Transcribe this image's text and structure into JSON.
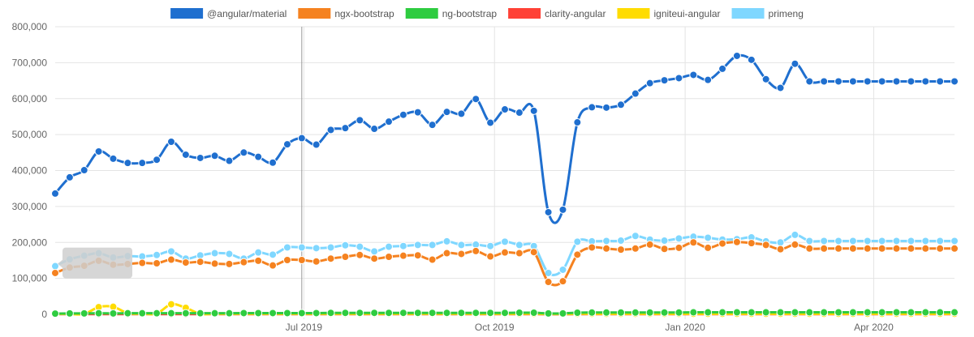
{
  "chart_data": {
    "type": "line",
    "x": [
      "2019-03-03",
      "2019-03-10",
      "2019-03-17",
      "2019-03-24",
      "2019-03-31",
      "2019-04-07",
      "2019-04-14",
      "2019-04-21",
      "2019-04-28",
      "2019-05-05",
      "2019-05-12",
      "2019-05-19",
      "2019-05-26",
      "2019-06-02",
      "2019-06-09",
      "2019-06-16",
      "2019-06-23",
      "2019-06-30",
      "2019-07-07",
      "2019-07-14",
      "2019-07-21",
      "2019-07-28",
      "2019-08-04",
      "2019-08-11",
      "2019-08-18",
      "2019-08-25",
      "2019-09-01",
      "2019-09-08",
      "2019-09-15",
      "2019-09-22",
      "2019-09-29",
      "2019-10-06",
      "2019-10-13",
      "2019-10-20",
      "2019-10-27",
      "2019-11-03",
      "2019-11-10",
      "2019-11-17",
      "2019-11-24",
      "2019-12-01",
      "2019-12-08",
      "2019-12-15",
      "2019-12-22",
      "2019-12-29",
      "2020-01-05",
      "2020-01-12",
      "2020-01-19",
      "2020-01-26",
      "2020-02-02",
      "2020-02-09",
      "2020-02-16",
      "2020-02-23",
      "2020-03-01",
      "2020-03-08",
      "2020-03-15",
      "2020-03-22",
      "2020-03-29",
      "2020-04-05",
      "2020-04-12",
      "2020-04-19",
      "2020-04-26",
      "2020-05-03",
      "2020-05-10"
    ],
    "x_tick_labels": [
      {
        "date": "2019-07-01",
        "label": "Jul 2019"
      },
      {
        "date": "2019-10-01",
        "label": "Oct 2019"
      },
      {
        "date": "2020-01-01",
        "label": "Jan 2020"
      },
      {
        "date": "2020-04-01",
        "label": "Apr 2020"
      }
    ],
    "y_ticks": [
      0,
      100000,
      200000,
      300000,
      400000,
      500000,
      600000,
      700000,
      800000
    ],
    "y_tick_labels": [
      "0",
      "100,000",
      "200,000",
      "300,000",
      "400,000",
      "500,000",
      "600,000",
      "700,000",
      "800,000"
    ],
    "ylim": [
      0,
      800000
    ],
    "grid": true,
    "legend_position": "top-center",
    "crosshair_date": "2019-06-30",
    "series": [
      {
        "name": "@angular/material",
        "color": "#1f6fcf",
        "values": [
          336000,
          381000,
          401000,
          453000,
          433000,
          421000,
          421000,
          430000,
          480000,
          444000,
          435000,
          441000,
          427000,
          450000,
          438000,
          422000,
          473000,
          490000,
          472000,
          513000,
          518000,
          540000,
          516000,
          536000,
          555000,
          562000,
          527000,
          563000,
          558000,
          599000,
          533000,
          570000,
          561000,
          566000,
          284000,
          291000,
          534000,
          576000,
          575000,
          583000,
          614000,
          643000,
          651000,
          657000,
          666000,
          652000,
          683000,
          719000,
          708000,
          654000,
          630000,
          697000,
          648000,
          648000,
          648000,
          648000,
          648000,
          648000,
          648000,
          648000,
          648000,
          648000,
          648000
        ]
      },
      {
        "name": "ngx-bootstrap",
        "color": "#f58220",
        "values": [
          115000,
          130000,
          135000,
          149000,
          138000,
          140000,
          143000,
          142000,
          152000,
          144000,
          146000,
          141000,
          140000,
          145000,
          149000,
          136000,
          151000,
          151000,
          147000,
          155000,
          160000,
          165000,
          155000,
          160000,
          163000,
          164000,
          152000,
          170000,
          168000,
          176000,
          161000,
          172000,
          170000,
          173000,
          90000,
          92000,
          166000,
          186000,
          183000,
          180000,
          183000,
          194000,
          182000,
          185000,
          200000,
          185000,
          197000,
          201000,
          198000,
          193000,
          181000,
          194000,
          183000,
          183000,
          183000,
          183000,
          183000,
          183000,
          183000,
          183000,
          183000,
          183000,
          183000
        ]
      },
      {
        "name": "ng-bootstrap",
        "color": "#2ecc40",
        "values": [
          2000,
          2500,
          2500,
          3000,
          2500,
          3000,
          3000,
          3000,
          3000,
          3000,
          3000,
          3000,
          3000,
          3500,
          3500,
          3500,
          3500,
          3500,
          3500,
          4000,
          4000,
          4000,
          4000,
          4000,
          4000,
          4000,
          4000,
          4000,
          4000,
          4000,
          4000,
          4000,
          4500,
          4500,
          2500,
          2500,
          4500,
          5000,
          5000,
          5000,
          5000,
          5000,
          5000,
          5000,
          5500,
          5500,
          5500,
          5500,
          5500,
          5500,
          5500,
          5500,
          5500,
          5500,
          5500,
          5500,
          5500,
          5500,
          5500,
          5500,
          5500,
          5500,
          5500
        ]
      },
      {
        "name": "clarity-angular",
        "color": "#ff4136",
        "values": [
          500,
          500,
          500,
          500,
          500,
          500,
          500,
          500,
          500,
          500,
          500,
          500,
          500,
          500,
          500,
          500,
          500,
          500,
          500,
          500,
          500,
          500,
          500,
          500,
          500,
          500,
          500,
          500,
          500,
          500,
          500,
          500,
          500,
          500,
          300,
          300,
          500,
          500,
          500,
          500,
          500,
          500,
          500,
          500,
          500,
          500,
          500,
          500,
          500,
          500,
          500,
          500,
          500,
          500,
          500,
          500,
          500,
          500,
          500,
          500,
          500,
          500,
          500
        ]
      },
      {
        "name": "igniteui-angular",
        "color": "#ffdc00",
        "values": [
          1000,
          1000,
          1000,
          20000,
          21000,
          3000,
          2000,
          2000,
          28000,
          18000,
          1500,
          1500,
          1500,
          1500,
          1500,
          1500,
          1500,
          1500,
          1500,
          1500,
          1500,
          1500,
          1500,
          1500,
          1500,
          1500,
          1500,
          1500,
          1500,
          1500,
          1500,
          1500,
          1500,
          1500,
          800,
          800,
          1500,
          1500,
          1500,
          1500,
          1500,
          1500,
          1500,
          1500,
          1500,
          1500,
          1500,
          1500,
          1500,
          1500,
          1500,
          1500,
          1500,
          1500,
          1500,
          1500,
          1500,
          1500,
          1500,
          1500,
          1500,
          1500,
          1500
        ]
      },
      {
        "name": "primeng",
        "color": "#7fd7ff",
        "values": [
          134000,
          153000,
          163000,
          170000,
          158000,
          162000,
          161000,
          165000,
          175000,
          155000,
          164000,
          170000,
          168000,
          155000,
          172000,
          166000,
          186000,
          186000,
          184000,
          186000,
          192000,
          188000,
          175000,
          188000,
          190000,
          193000,
          193000,
          203000,
          193000,
          194000,
          190000,
          202000,
          193000,
          190000,
          115000,
          124000,
          202000,
          203000,
          204000,
          205000,
          218000,
          208000,
          205000,
          211000,
          216000,
          213000,
          208000,
          209000,
          214000,
          203000,
          200000,
          221000,
          204000,
          204000,
          204000,
          204000,
          204000,
          204000,
          204000,
          204000,
          204000,
          204000,
          204000
        ]
      }
    ]
  }
}
